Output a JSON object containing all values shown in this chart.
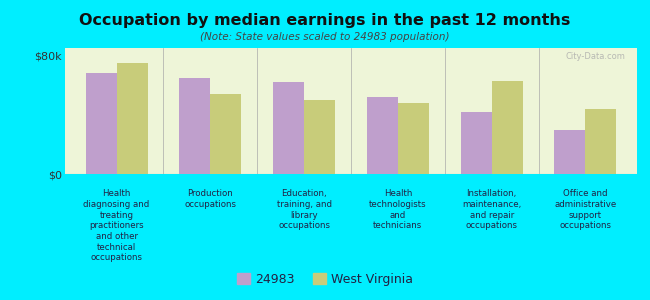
{
  "title": "Occupation by median earnings in the past 12 months",
  "subtitle": "(Note: State values scaled to 24983 population)",
  "background_outer": "#00eeff",
  "background_inner_top": "#e8f0c8",
  "background_inner_bottom": "#f5faf0",
  "categories": [
    "Health\ndiagnosing and\ntreating\npractitioners\nand other\ntechnical\noccupations",
    "Production\noccupations",
    "Education,\ntraining, and\nlibrary\noccupations",
    "Health\ntechnologists\nand\ntechnicians",
    "Installation,\nmaintenance,\nand repair\noccupations",
    "Office and\nadministrative\nsupport\noccupations"
  ],
  "values_24983": [
    68000,
    65000,
    62000,
    52000,
    42000,
    30000
  ],
  "values_wv": [
    75000,
    54000,
    50000,
    48000,
    63000,
    44000
  ],
  "color_24983": "#bf9fcc",
  "color_wv": "#c8cc7a",
  "ylim": [
    0,
    85000
  ],
  "yticks": [
    0,
    80000
  ],
  "ytick_labels": [
    "$0",
    "$80k"
  ],
  "legend_24983": "24983",
  "legend_wv": "West Virginia",
  "watermark": "City-Data.com"
}
